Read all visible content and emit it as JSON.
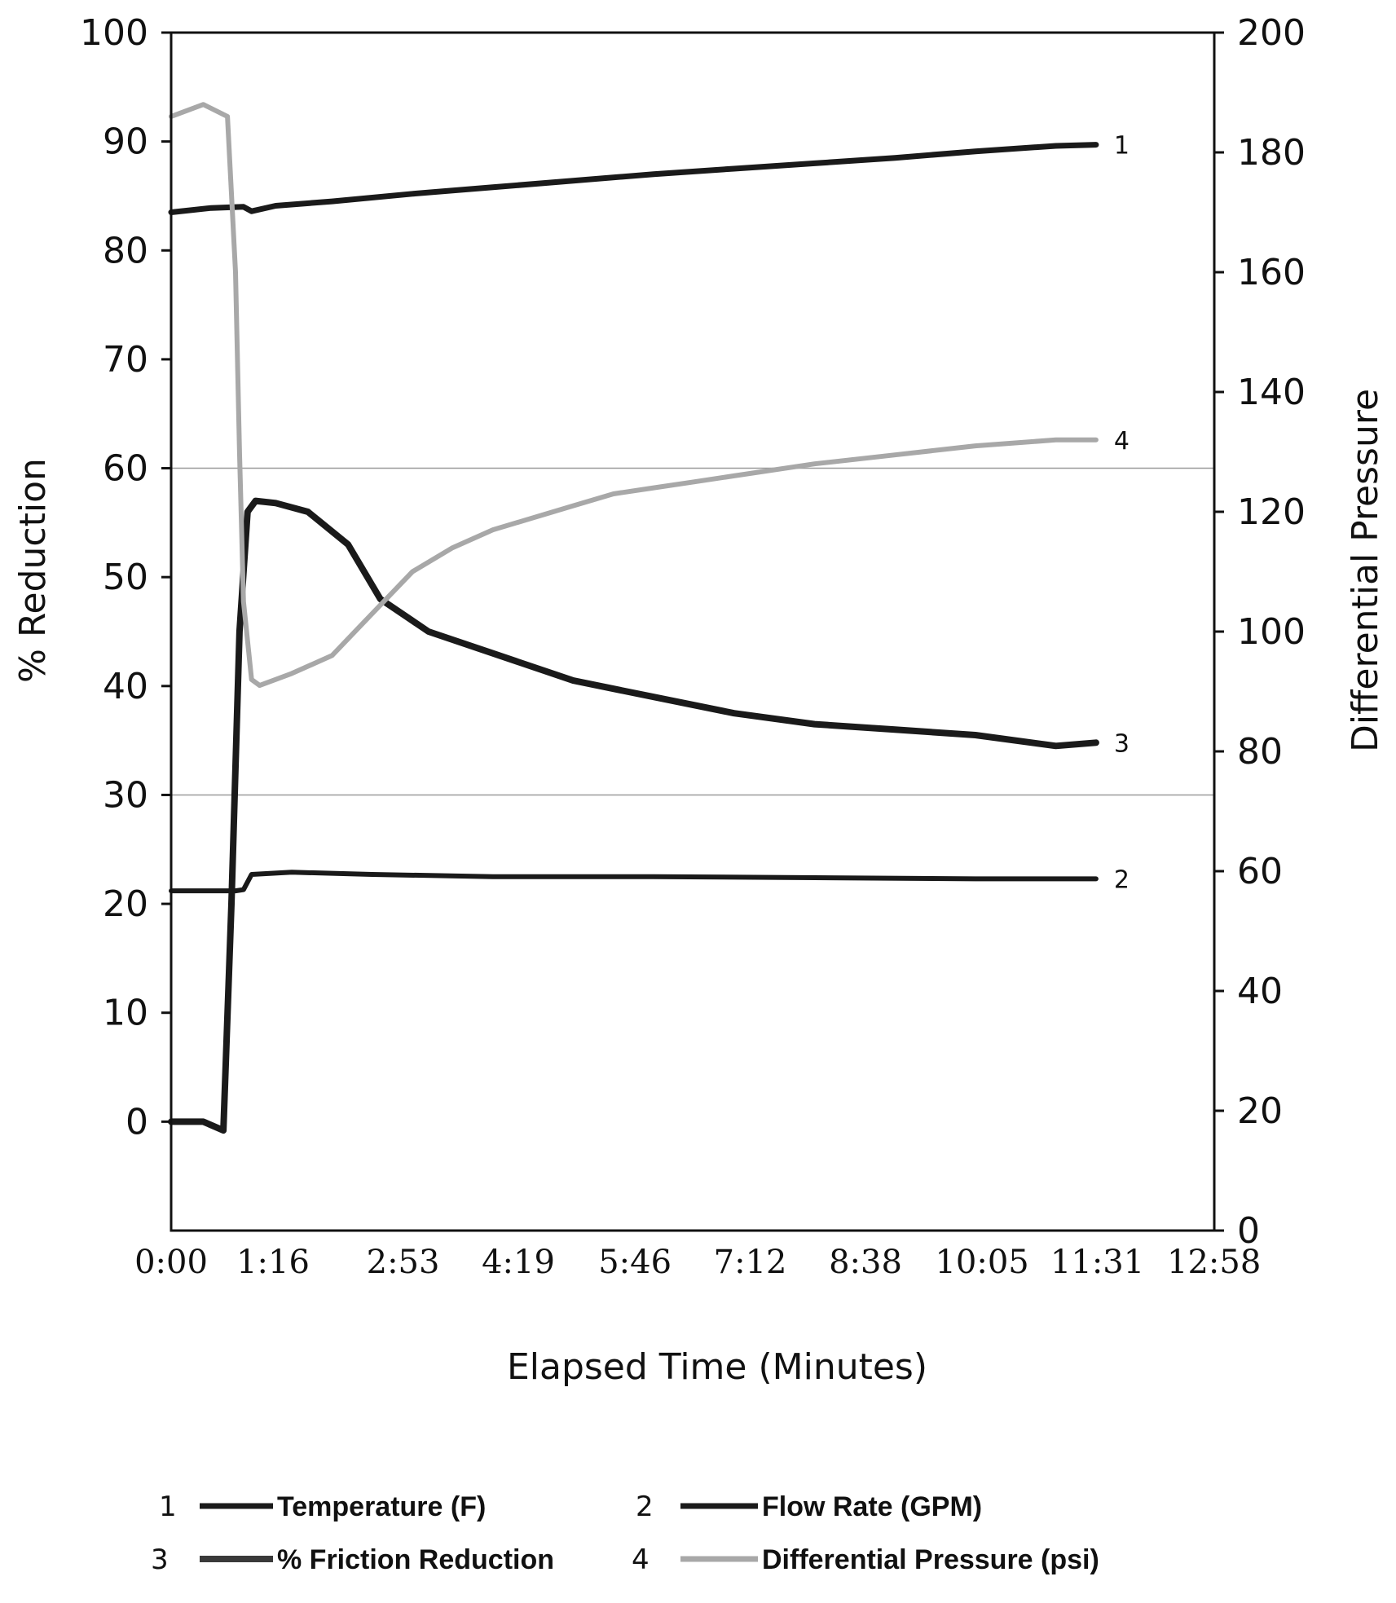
{
  "chart_data": {
    "type": "line",
    "xlabel": "Elapsed Time (Minutes)",
    "ylabel_left": "% Reduction",
    "ylabel_right": "Differential Pressure",
    "x_ticks": [
      "0:00",
      "1:16",
      "2:53",
      "4:19",
      "5:46",
      "7:12",
      "8:38",
      "10:05",
      "11:31",
      "12:58"
    ],
    "xlim_minutes": [
      0,
      12.97
    ],
    "ylim_left": [
      -10,
      100
    ],
    "y_ticks_left": [
      0,
      10,
      20,
      30,
      40,
      50,
      60,
      70,
      80,
      90,
      100
    ],
    "ylim_right": [
      0,
      200
    ],
    "y_ticks_right": [
      0,
      20,
      40,
      60,
      80,
      100,
      120,
      140,
      160,
      180,
      200
    ],
    "gridlines_left": [
      30,
      60
    ],
    "legend_position": "bottom",
    "series": [
      {
        "name": "Temperature (F)",
        "number": "1",
        "axis": "left",
        "color": "#1a1a1a",
        "x": [
          0,
          0.5,
          0.9,
          1.0,
          1.3,
          2.0,
          3.0,
          4.0,
          5.0,
          6.0,
          7.0,
          8.0,
          9.0,
          10.0,
          11.0,
          11.5
        ],
        "y": [
          83.5,
          83.9,
          84.0,
          83.6,
          84.1,
          84.5,
          85.2,
          85.8,
          86.4,
          87.0,
          87.5,
          88.0,
          88.5,
          89.1,
          89.6,
          89.7
        ]
      },
      {
        "name": "Flow Rate (GPM)",
        "number": "2",
        "axis": "left",
        "color": "#1a1a1a",
        "x": [
          0,
          0.8,
          0.9,
          1.0,
          1.5,
          2.5,
          4.0,
          6.0,
          8.0,
          10.0,
          11.5
        ],
        "y": [
          21.2,
          21.2,
          21.3,
          22.7,
          22.9,
          22.7,
          22.5,
          22.5,
          22.4,
          22.3,
          22.3
        ]
      },
      {
        "name": "% Friction Reduction",
        "number": "3",
        "axis": "left",
        "color": "#1a1a1a",
        "x": [
          0,
          0.4,
          0.65,
          0.75,
          0.85,
          0.95,
          1.05,
          1.3,
          1.7,
          2.2,
          2.6,
          3.2,
          4.0,
          5.0,
          6.0,
          7.0,
          8.0,
          9.0,
          10.0,
          11.0,
          11.5
        ],
        "y": [
          0,
          0,
          -0.8,
          20,
          45,
          56,
          57,
          56.8,
          56,
          53,
          48,
          45,
          43,
          40.5,
          39,
          37.5,
          36.5,
          36,
          35.5,
          34.5,
          34.8
        ]
      },
      {
        "name": "Differential Pressure (psi)",
        "number": "4",
        "axis": "right",
        "color": "#a8a8a8",
        "x": [
          0,
          0.4,
          0.7,
          0.8,
          0.85,
          0.9,
          1.0,
          1.1,
          1.5,
          2.0,
          2.5,
          3.0,
          3.5,
          4.0,
          4.5,
          5.0,
          5.5,
          6.0,
          6.5,
          7.0,
          8.0,
          9.0,
          10.0,
          11.0,
          11.5
        ],
        "y": [
          186,
          188,
          186,
          160,
          130,
          105,
          92,
          91,
          93,
          96,
          103,
          110,
          114,
          117,
          119,
          121,
          123,
          124,
          125,
          126,
          128,
          129.5,
          131,
          132,
          132
        ]
      }
    ]
  },
  "legend": [
    {
      "number": "1",
      "label": "Temperature (F)"
    },
    {
      "number": "2",
      "label": "Flow Rate (GPM)"
    },
    {
      "number": "3",
      "label": "% Friction Reduction"
    },
    {
      "number": "4",
      "label": "Differential Pressure (psi)"
    }
  ]
}
